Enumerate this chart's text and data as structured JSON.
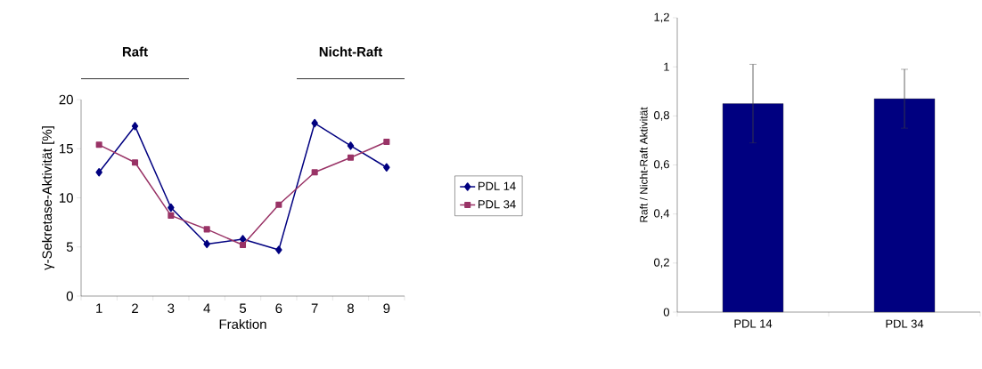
{
  "chart_data": [
    {
      "type": "line",
      "xlabel": "Fraktion",
      "ylabel": "γ-Sekretase-Aktivität [%]",
      "categories": [
        "1",
        "2",
        "3",
        "4",
        "5",
        "6",
        "7",
        "8",
        "9"
      ],
      "series": [
        {
          "name": "PDL 14",
          "color": "#000080",
          "marker": "diamond",
          "values": [
            12.6,
            17.3,
            9.0,
            5.3,
            5.8,
            4.7,
            17.6,
            15.3,
            13.1
          ]
        },
        {
          "name": "PDL 34",
          "color": "#993366",
          "marker": "square",
          "values": [
            15.4,
            13.6,
            8.2,
            6.8,
            5.2,
            9.3,
            12.6,
            14.1,
            15.7
          ]
        }
      ],
      "ylim": [
        0,
        20
      ],
      "yticks": [
        0,
        5,
        10,
        15,
        20
      ],
      "legend": "right",
      "annotations": [
        "Raft",
        "Nicht-Raft"
      ]
    },
    {
      "type": "bar",
      "ylabel": "Raft / Nicht-Raft Aktivität",
      "categories": [
        "PDL 14",
        "PDL 34"
      ],
      "values": [
        0.85,
        0.87
      ],
      "errors": [
        0.16,
        0.12
      ],
      "color": "#000080",
      "ylim": [
        0,
        1.2
      ],
      "yticks": [
        0,
        {
          "value": 0.2,
          "label": "0,2"
        },
        {
          "value": 0.4,
          "label": "0,4"
        },
        {
          "value": 0.6,
          "label": "0,6"
        },
        {
          "value": 0.8,
          "label": "0,8"
        },
        1,
        {
          "value": 1.2,
          "label": "1,2"
        }
      ]
    }
  ]
}
